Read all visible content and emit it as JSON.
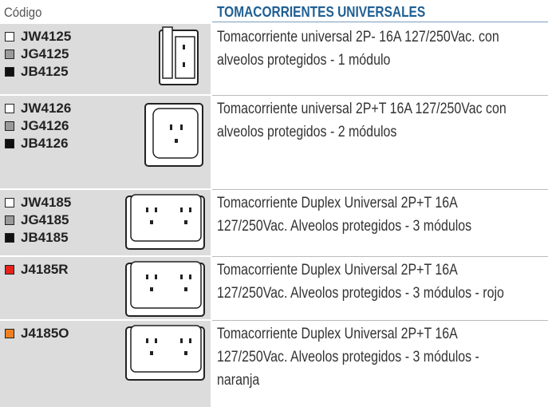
{
  "header": {
    "code_label": "Código",
    "title": "TOMACORRIENTES UNIVERSALES"
  },
  "rows": [
    {
      "codes": [
        {
          "code": "JW4125",
          "swatch": "#ffffff"
        },
        {
          "code": "JG4125",
          "swatch": "#9a9a9a"
        },
        {
          "code": "JB4125",
          "swatch": "#111111"
        }
      ],
      "lines": [
        "Tomacorriente universal 2P- 16A 127/250Vac. con",
        "alveolos protegidos - 1 módulo"
      ]
    },
    {
      "codes": [
        {
          "code": "JW4126",
          "swatch": "#ffffff"
        },
        {
          "code": "JG4126",
          "swatch": "#9a9a9a"
        },
        {
          "code": "JB4126",
          "swatch": "#111111"
        }
      ],
      "lines": [
        "Tomacorriente universal 2P+T 16A 127/250Vac con",
        "alveolos protegidos - 2 módulos"
      ]
    },
    {
      "codes": [
        {
          "code": "JW4185",
          "swatch": "#ffffff"
        },
        {
          "code": "JG4185",
          "swatch": "#9a9a9a"
        },
        {
          "code": "JB4185",
          "swatch": "#111111"
        }
      ],
      "lines": [
        "Tomacorriente Duplex Universal 2P+T 16A",
        "127/250Vac. Alveolos protegidos - 3 módulos"
      ]
    },
    {
      "codes": [
        {
          "code": "J4185R",
          "swatch": "#e5231b"
        }
      ],
      "lines": [
        "Tomacorriente Duplex Universal 2P+T 16A",
        "127/250Vac. Alveolos protegidos - 3 módulos - rojo"
      ]
    },
    {
      "codes": [
        {
          "code": "J4185O",
          "swatch": "#f07f22"
        }
      ],
      "lines": [
        "Tomacorriente Duplex Universal 2P+T 16A",
        "127/250Vac. Alveolos protegidos - 3 módulos -",
        "naranja"
      ]
    }
  ]
}
